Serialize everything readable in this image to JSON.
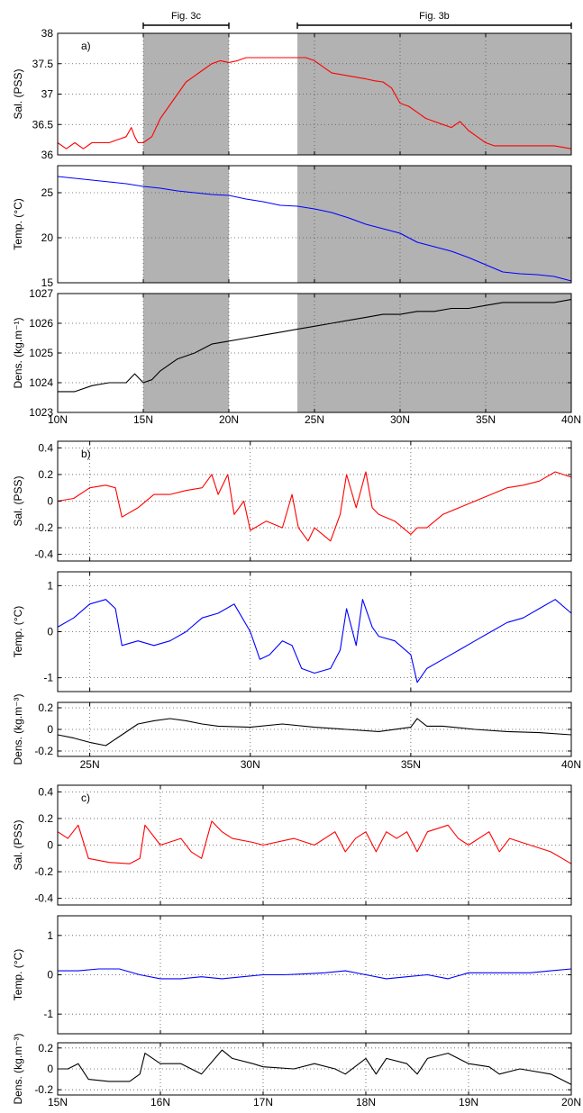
{
  "figure": {
    "top_labels": [
      "Fig. 3c",
      "Fig. 3b"
    ]
  },
  "chart_data": [
    {
      "panel": "a)",
      "type": "line",
      "xlim": [
        10,
        40
      ],
      "xticks": [
        "10N",
        "15N",
        "20N",
        "25N",
        "30N",
        "35N",
        "40N"
      ],
      "grid": true,
      "shaded_ranges": [
        [
          15,
          20
        ],
        [
          24,
          40
        ]
      ],
      "shade_color": "#b2b2b2",
      "subplots": [
        {
          "ylabel": "Sal. (PSS)",
          "ylim": [
            36,
            38
          ],
          "yticks": [
            "36",
            "36.5",
            "37",
            "37.5",
            "38"
          ],
          "color": "#ff0000",
          "x": [
            10,
            10.5,
            11,
            11.5,
            12,
            12.5,
            13,
            13.5,
            14,
            14.3,
            14.5,
            14.7,
            15,
            15.5,
            16,
            16.5,
            17,
            17.5,
            18,
            18.5,
            19,
            19.5,
            20,
            20.5,
            21,
            22,
            23,
            24,
            24.5,
            25,
            26,
            27,
            28,
            28.5,
            29,
            29.5,
            30,
            30.5,
            31,
            31.5,
            32,
            32.5,
            33,
            33.5,
            34,
            34.5,
            35,
            35.5,
            36,
            37,
            38,
            39,
            40
          ],
          "y": [
            36.2,
            36.1,
            36.2,
            36.1,
            36.2,
            36.2,
            36.2,
            36.25,
            36.3,
            36.45,
            36.3,
            36.2,
            36.2,
            36.3,
            36.6,
            36.8,
            37.0,
            37.2,
            37.3,
            37.4,
            37.5,
            37.55,
            37.52,
            37.55,
            37.6,
            37.6,
            37.6,
            37.6,
            37.6,
            37.55,
            37.35,
            37.3,
            37.25,
            37.22,
            37.2,
            37.1,
            36.85,
            36.8,
            36.7,
            36.6,
            36.55,
            36.5,
            36.45,
            36.55,
            36.4,
            36.3,
            36.2,
            36.15,
            36.15,
            36.15,
            36.15,
            36.15,
            36.1
          ]
        },
        {
          "ylabel": "Temp. (°C)",
          "ylim": [
            15,
            28
          ],
          "yticks": [
            "15",
            "20",
            "25"
          ],
          "color": "#0000ff",
          "x": [
            10,
            11,
            12,
            13,
            14,
            15,
            16,
            17,
            18,
            19,
            20,
            21,
            22,
            23,
            24,
            25,
            26,
            27,
            28,
            29,
            30,
            31,
            32,
            33,
            34,
            35,
            36,
            37,
            38,
            39,
            40
          ],
          "y": [
            26.8,
            26.6,
            26.4,
            26.2,
            26.0,
            25.7,
            25.5,
            25.2,
            25.0,
            24.8,
            24.7,
            24.3,
            24.0,
            23.6,
            23.5,
            23.2,
            22.8,
            22.2,
            21.5,
            21.0,
            20.5,
            19.5,
            19.0,
            18.5,
            17.8,
            17.0,
            16.2,
            16.0,
            15.9,
            15.7,
            15.2
          ]
        },
        {
          "ylabel": "Dens. (kg.m⁻¹)",
          "ylim": [
            1023,
            1027
          ],
          "yticks": [
            "1023",
            "1024",
            "1025",
            "1026",
            "1027"
          ],
          "color": "#000000",
          "x": [
            10,
            11,
            12,
            13,
            14,
            14.5,
            15,
            15.5,
            16,
            17,
            18,
            19,
            20,
            21,
            22,
            23,
            24,
            25,
            26,
            27,
            28,
            29,
            30,
            31,
            32,
            33,
            34,
            35,
            36,
            37,
            38,
            39,
            40
          ],
          "y": [
            1023.7,
            1023.7,
            1023.9,
            1024.0,
            1024.0,
            1024.3,
            1024.0,
            1024.1,
            1024.4,
            1024.8,
            1025.0,
            1025.3,
            1025.4,
            1025.5,
            1025.6,
            1025.7,
            1025.8,
            1025.9,
            1026.0,
            1026.1,
            1026.2,
            1026.3,
            1026.3,
            1026.4,
            1026.4,
            1026.5,
            1026.5,
            1026.6,
            1026.7,
            1026.7,
            1026.7,
            1026.7,
            1026.8
          ]
        }
      ]
    },
    {
      "panel": "b)",
      "type": "line",
      "xlim": [
        24,
        40
      ],
      "xticks": [
        "25N",
        "30N",
        "35N",
        "40N"
      ],
      "grid": true,
      "subplots": [
        {
          "ylabel": "Sal. (PSS)",
          "ylim": [
            -0.45,
            0.45
          ],
          "yticks": [
            "-0.4",
            "-0.2",
            "0",
            "0.2",
            "0.4"
          ],
          "color": "#ff0000",
          "x": [
            24,
            24.5,
            25,
            25.5,
            25.8,
            26,
            26.5,
            27,
            27.5,
            28,
            28.5,
            28.8,
            29,
            29.3,
            29.5,
            29.8,
            30,
            30.5,
            31,
            31.3,
            31.5,
            31.8,
            32,
            32.5,
            32.8,
            33,
            33.3,
            33.6,
            33.8,
            34,
            34.5,
            35,
            35.2,
            35.5,
            36,
            36.5,
            37,
            37.5,
            38,
            38.5,
            39,
            39.5,
            40
          ],
          "y": [
            0.0,
            0.02,
            0.1,
            0.12,
            0.1,
            -0.12,
            -0.05,
            0.05,
            0.05,
            0.08,
            0.1,
            0.2,
            0.05,
            0.2,
            -0.1,
            0.0,
            -0.22,
            -0.15,
            -0.2,
            0.05,
            -0.2,
            -0.3,
            -0.2,
            -0.3,
            -0.1,
            0.2,
            -0.05,
            0.22,
            -0.05,
            -0.1,
            -0.15,
            -0.25,
            -0.2,
            -0.2,
            -0.1,
            -0.05,
            0.0,
            0.05,
            0.1,
            0.12,
            0.15,
            0.22,
            0.18
          ]
        },
        {
          "ylabel": "Temp. (°C)",
          "ylim": [
            -1.3,
            1.3
          ],
          "yticks": [
            "-1",
            "0",
            "1"
          ],
          "color": "#0000ff",
          "x": [
            24,
            24.5,
            25,
            25.5,
            25.8,
            26,
            26.5,
            27,
            27.5,
            28,
            28.5,
            29,
            29.5,
            30,
            30.3,
            30.6,
            31,
            31.3,
            31.6,
            32,
            32.5,
            32.8,
            33,
            33.3,
            33.5,
            33.8,
            34,
            34.5,
            35,
            35.2,
            35.5,
            36,
            36.5,
            37,
            37.5,
            38,
            38.5,
            39,
            39.5,
            40
          ],
          "y": [
            0.1,
            0.3,
            0.6,
            0.7,
            0.5,
            -0.3,
            -0.2,
            -0.3,
            -0.2,
            0.0,
            0.3,
            0.4,
            0.6,
            0.0,
            -0.6,
            -0.5,
            -0.2,
            -0.3,
            -0.8,
            -0.9,
            -0.8,
            -0.4,
            0.5,
            -0.3,
            0.7,
            0.1,
            -0.1,
            -0.2,
            -0.5,
            -1.1,
            -0.8,
            -0.6,
            -0.4,
            -0.2,
            0.0,
            0.2,
            0.3,
            0.5,
            0.7,
            0.4
          ]
        },
        {
          "ylabel": "Dens. (kg.m⁻³)",
          "ylim": [
            -0.25,
            0.25
          ],
          "yticks": [
            "-0.2",
            "0",
            "0.2"
          ],
          "color": "#000000",
          "x": [
            24,
            24.5,
            25,
            25.5,
            26,
            26.5,
            27,
            27.5,
            28,
            28.5,
            29,
            30,
            31,
            32,
            33,
            34,
            35,
            35.2,
            35.5,
            36,
            37,
            38,
            39,
            40
          ],
          "y": [
            -0.05,
            -0.08,
            -0.12,
            -0.15,
            -0.05,
            0.05,
            0.08,
            0.1,
            0.08,
            0.05,
            0.03,
            0.02,
            0.05,
            0.02,
            0.0,
            -0.02,
            0.02,
            0.1,
            0.03,
            0.03,
            0.0,
            -0.02,
            -0.03,
            -0.05
          ]
        }
      ]
    },
    {
      "panel": "c)",
      "type": "line",
      "xlim": [
        15,
        20
      ],
      "xticks": [
        "15N",
        "16N",
        "17N",
        "18N",
        "19N",
        "20N"
      ],
      "grid": true,
      "subplots": [
        {
          "ylabel": "Sal. (PSS)",
          "ylim": [
            -0.45,
            0.45
          ],
          "yticks": [
            "-0.4",
            "-0.2",
            "0",
            "0.2",
            "0.4"
          ],
          "color": "#ff0000",
          "x": [
            15,
            15.1,
            15.2,
            15.3,
            15.5,
            15.7,
            15.8,
            15.85,
            16,
            16.2,
            16.3,
            16.4,
            16.5,
            16.6,
            16.7,
            16.9,
            17,
            17.3,
            17.5,
            17.7,
            17.8,
            17.9,
            18,
            18.1,
            18.2,
            18.3,
            18.4,
            18.5,
            18.6,
            18.8,
            18.9,
            19.0,
            19.2,
            19.3,
            19.4,
            19.6,
            19.8,
            20
          ],
          "y": [
            0.1,
            0.05,
            0.15,
            -0.1,
            -0.13,
            -0.14,
            -0.1,
            0.15,
            0.0,
            0.05,
            -0.05,
            -0.1,
            0.18,
            0.1,
            0.05,
            0.02,
            0.0,
            0.05,
            0.0,
            0.1,
            -0.05,
            0.05,
            0.1,
            -0.05,
            0.1,
            0.05,
            0.1,
            -0.05,
            0.1,
            0.15,
            0.05,
            0.0,
            0.1,
            -0.05,
            0.05,
            0.0,
            -0.05,
            -0.14
          ]
        },
        {
          "ylabel": "Temp. (°C)",
          "ylim": [
            -1.5,
            1.5
          ],
          "yticks": [
            "-1",
            "0",
            "1"
          ],
          "color": "#0000ff",
          "x": [
            15,
            15.2,
            15.4,
            15.6,
            15.8,
            16,
            16.2,
            16.4,
            16.6,
            16.8,
            17,
            17.2,
            17.4,
            17.6,
            17.8,
            18,
            18.2,
            18.4,
            18.6,
            18.8,
            19,
            19.2,
            19.4,
            19.6,
            19.8,
            20
          ],
          "y": [
            0.1,
            0.1,
            0.15,
            0.15,
            0.0,
            -0.1,
            -0.1,
            -0.05,
            -0.1,
            -0.05,
            0.0,
            0.0,
            0.02,
            0.05,
            0.1,
            0.0,
            -0.1,
            -0.05,
            0.0,
            -0.1,
            0.05,
            0.05,
            0.05,
            0.05,
            0.1,
            0.15
          ]
        },
        {
          "ylabel": "Dens. (kg.m⁻³)",
          "ylim": [
            -0.25,
            0.25
          ],
          "yticks": [
            "-0.2",
            "0",
            "0.2"
          ],
          "color": "#000000",
          "x": [
            15,
            15.1,
            15.2,
            15.3,
            15.5,
            15.7,
            15.8,
            15.85,
            16,
            16.2,
            16.4,
            16.6,
            16.7,
            16.9,
            17,
            17.3,
            17.5,
            17.7,
            17.8,
            18,
            18.1,
            18.2,
            18.4,
            18.5,
            18.6,
            18.8,
            19,
            19.2,
            19.3,
            19.5,
            19.8,
            20
          ],
          "y": [
            0.0,
            0.0,
            0.05,
            -0.1,
            -0.12,
            -0.12,
            -0.05,
            0.15,
            0.05,
            0.05,
            -0.05,
            0.18,
            0.1,
            0.05,
            0.02,
            0.0,
            0.05,
            0.0,
            -0.05,
            0.1,
            -0.05,
            0.1,
            0.05,
            -0.05,
            0.1,
            0.15,
            0.05,
            0.02,
            -0.05,
            0.0,
            -0.05,
            -0.15
          ]
        }
      ]
    }
  ]
}
